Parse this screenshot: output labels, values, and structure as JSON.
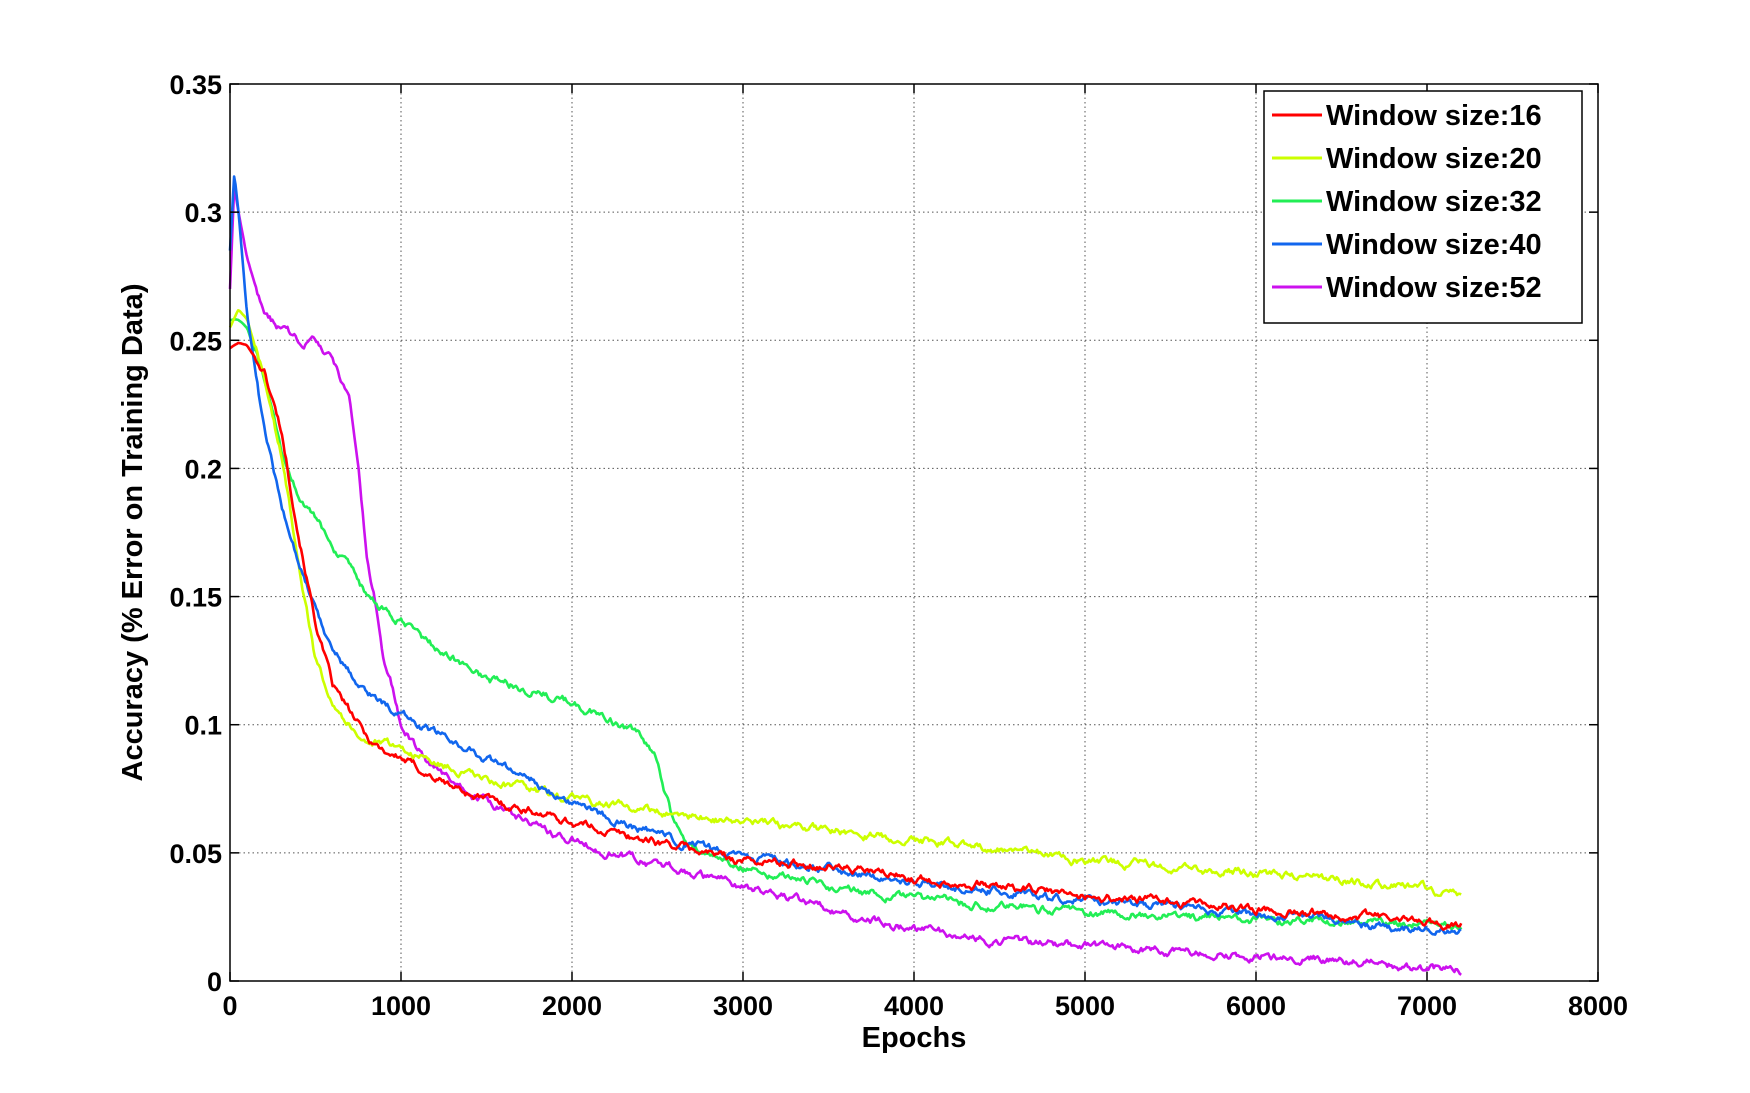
{
  "chart_data": {
    "type": "line",
    "xlabel": "Epochs",
    "ylabel": "Accuracy (% Error on Training Data)",
    "xlim": [
      0,
      8000
    ],
    "ylim": [
      0,
      0.35
    ],
    "xticks": [
      0,
      1000,
      2000,
      3000,
      4000,
      5000,
      6000,
      7000,
      8000
    ],
    "yticks": [
      0,
      0.05,
      0.1,
      0.15,
      0.2,
      0.25,
      0.3,
      0.35
    ],
    "xtick_labels": [
      "0",
      "1000",
      "2000",
      "3000",
      "4000",
      "5000",
      "6000",
      "7000",
      "8000"
    ],
    "ytick_labels": [
      "0",
      "0.05",
      "0.1",
      "0.15",
      "0.2",
      "0.25",
      "0.3",
      "0.35"
    ],
    "grid": true,
    "legend_position": "top-right",
    "series": [
      {
        "name": "Window size:16",
        "color": "#ff0000",
        "x": [
          0,
          50,
          100,
          200,
          300,
          400,
          500,
          600,
          700,
          800,
          900,
          1000,
          1200,
          1400,
          1600,
          1800,
          2000,
          2300,
          2600,
          3000,
          3500,
          4000,
          4500,
          5000,
          5500,
          6000,
          6500,
          7000,
          7200
        ],
        "y": [
          0.247,
          0.249,
          0.248,
          0.238,
          0.215,
          0.175,
          0.14,
          0.115,
          0.105,
          0.095,
          0.09,
          0.087,
          0.079,
          0.073,
          0.069,
          0.066,
          0.062,
          0.057,
          0.053,
          0.047,
          0.045,
          0.04,
          0.037,
          0.033,
          0.031,
          0.028,
          0.026,
          0.023,
          0.022
        ]
      },
      {
        "name": "Window size:20",
        "color": "#ccff00",
        "x": [
          0,
          50,
          100,
          200,
          300,
          400,
          500,
          600,
          700,
          800,
          900,
          1000,
          1200,
          1500,
          1800,
          2000,
          2500,
          3000,
          3500,
          4000,
          4500,
          5000,
          5500,
          6000,
          6500,
          7000,
          7200
        ],
        "y": [
          0.255,
          0.262,
          0.258,
          0.235,
          0.205,
          0.165,
          0.125,
          0.11,
          0.1,
          0.094,
          0.092,
          0.091,
          0.085,
          0.078,
          0.074,
          0.071,
          0.066,
          0.062,
          0.059,
          0.055,
          0.052,
          0.047,
          0.045,
          0.042,
          0.039,
          0.036,
          0.033
        ]
      },
      {
        "name": "Window size:32",
        "color": "#22ee55",
        "x": [
          0,
          50,
          100,
          200,
          300,
          400,
          500,
          600,
          700,
          800,
          900,
          1000,
          1200,
          1500,
          1800,
          2000,
          2200,
          2400,
          2500,
          2600,
          2700,
          3000,
          3500,
          4000,
          4500,
          5000,
          5500,
          6000,
          6500,
          7000,
          7200
        ],
        "y": [
          0.258,
          0.258,
          0.255,
          0.235,
          0.205,
          0.19,
          0.18,
          0.17,
          0.16,
          0.15,
          0.144,
          0.14,
          0.13,
          0.118,
          0.113,
          0.108,
          0.103,
          0.095,
          0.085,
          0.06,
          0.052,
          0.045,
          0.037,
          0.032,
          0.029,
          0.027,
          0.025,
          0.024,
          0.023,
          0.022,
          0.021
        ]
      },
      {
        "name": "Window size:40",
        "color": "#1166ee",
        "x": [
          0,
          25,
          50,
          100,
          200,
          300,
          400,
          500,
          600,
          700,
          800,
          900,
          1000,
          1200,
          1500,
          1800,
          2000,
          2300,
          2600,
          3000,
          3500,
          4000,
          4500,
          5000,
          5500,
          6000,
          6500,
          7000,
          7200
        ],
        "y": [
          0.285,
          0.315,
          0.3,
          0.26,
          0.215,
          0.185,
          0.165,
          0.145,
          0.13,
          0.12,
          0.113,
          0.108,
          0.104,
          0.097,
          0.087,
          0.077,
          0.07,
          0.061,
          0.055,
          0.048,
          0.044,
          0.039,
          0.035,
          0.031,
          0.029,
          0.026,
          0.023,
          0.02,
          0.019
        ]
      },
      {
        "name": "Window size:52",
        "color": "#cc11ee",
        "x": [
          0,
          25,
          50,
          100,
          200,
          300,
          400,
          500,
          600,
          650,
          700,
          750,
          800,
          850,
          900,
          950,
          1000,
          1100,
          1200,
          1500,
          1800,
          2000,
          2500,
          3000,
          3500,
          4000,
          4500,
          5000,
          5500,
          6000,
          6500,
          7000,
          7200
        ],
        "y": [
          0.27,
          0.31,
          0.3,
          0.282,
          0.26,
          0.254,
          0.25,
          0.249,
          0.243,
          0.235,
          0.225,
          0.2,
          0.165,
          0.148,
          0.125,
          0.115,
          0.1,
          0.09,
          0.082,
          0.07,
          0.06,
          0.055,
          0.045,
          0.037,
          0.028,
          0.02,
          0.016,
          0.014,
          0.011,
          0.01,
          0.008,
          0.005,
          0.004
        ]
      }
    ]
  }
}
